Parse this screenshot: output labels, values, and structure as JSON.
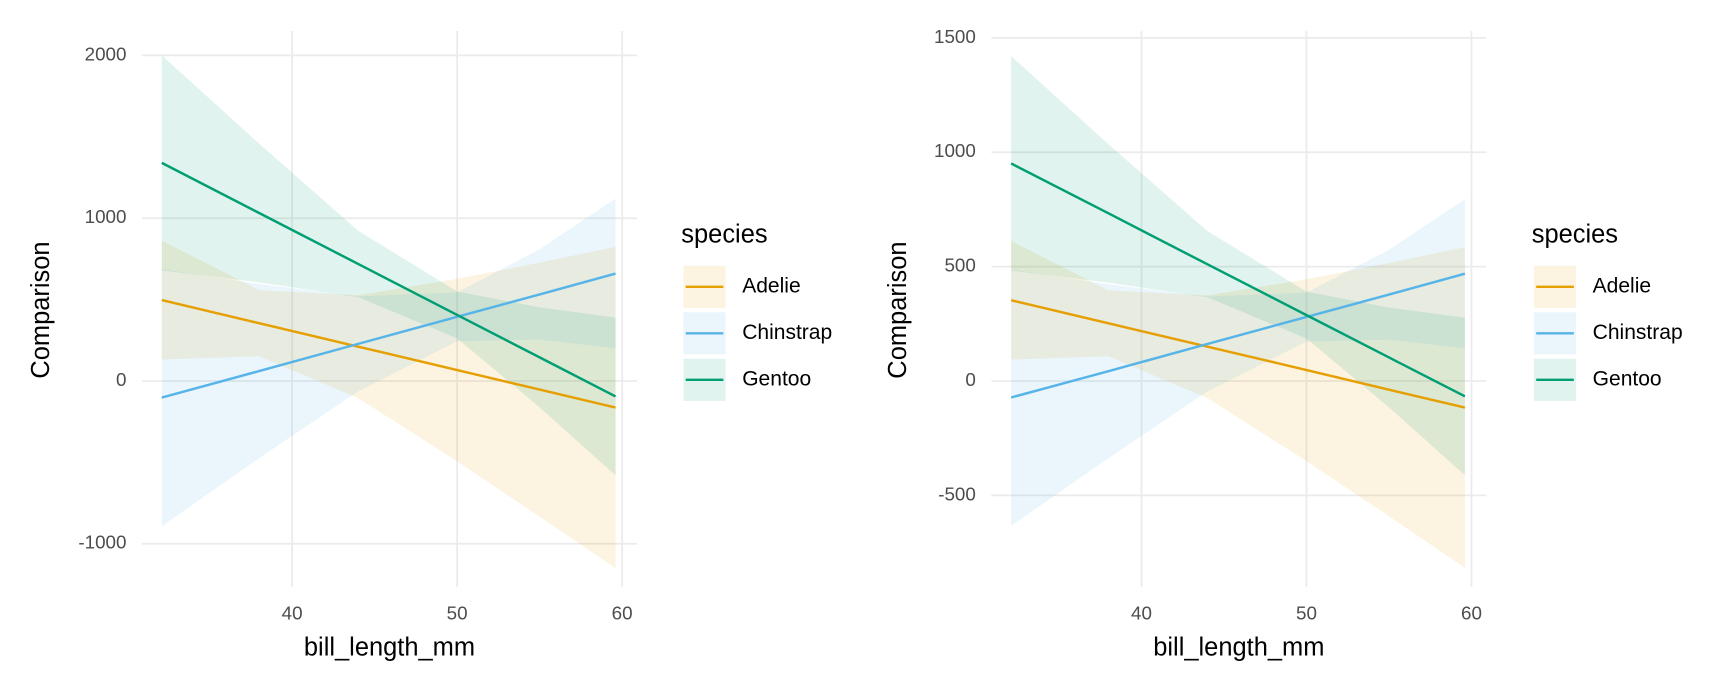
{
  "chart_data": [
    {
      "type": "line",
      "x_label": "bill_length_mm",
      "y_label": "Comparison",
      "legend_title": "species",
      "x": [
        32.1,
        38,
        44,
        50,
        55,
        59.6
      ],
      "xlim": [
        30.9,
        60.9
      ],
      "xticks": [
        40,
        50,
        60
      ],
      "ylim": [
        -1265,
        2150
      ],
      "yticks": [
        -1000,
        0,
        1000,
        2000
      ],
      "grid": true,
      "legend": "right",
      "series": [
        {
          "name": "Adelie",
          "color": "#E69F00",
          "values": [
            497,
            355,
            211,
            67,
            -53,
            -163
          ],
          "upper": [
            862,
            558,
            527,
            627,
            727,
            824
          ],
          "lower": [
            132,
            152,
            -105,
            -493,
            -833,
            -1150
          ]
        },
        {
          "name": "Chinstrap",
          "color": "#56B4E9",
          "values": [
            -102,
            61,
            228,
            394,
            532,
            660
          ],
          "upper": [
            688,
            596,
            520,
            544,
            809,
            1120
          ],
          "lower": [
            -892,
            -474,
            -64,
            244,
            255,
            200
          ]
        },
        {
          "name": "Gentoo",
          "color": "#009E73",
          "values": [
            1340,
            1032,
            719,
            406,
            145,
            -95
          ],
          "upper": [
            2000,
            1458,
            923,
            550,
            452,
            390
          ],
          "lower": [
            680,
            606,
            515,
            262,
            -162,
            -580
          ]
        }
      ]
    },
    {
      "type": "line",
      "x_label": "bill_length_mm",
      "y_label": "Comparison",
      "legend_title": "species",
      "x": [
        32.1,
        38,
        44,
        50,
        55,
        59.6
      ],
      "xlim": [
        30.9,
        60.9
      ],
      "xticks": [
        40,
        50,
        60
      ],
      "ylim": [
        -900,
        1530
      ],
      "yticks": [
        -500,
        0,
        500,
        1000,
        1500
      ],
      "grid": true,
      "legend": "right",
      "series": [
        {
          "name": "Adelie",
          "color": "#E69F00",
          "values": [
            353,
            252,
            150,
            48,
            -38,
            -116
          ],
          "upper": [
            612,
            396,
            374,
            445,
            516,
            585
          ],
          "lower": [
            94,
            108,
            -75,
            -350,
            -591,
            -817
          ]
        },
        {
          "name": "Chinstrap",
          "color": "#56B4E9",
          "values": [
            -72,
            43,
            162,
            280,
            378,
            469
          ],
          "upper": [
            488,
            423,
            369,
            386,
            574,
            795
          ],
          "lower": [
            -633,
            -337,
            -45,
            173,
            181,
            142
          ]
        },
        {
          "name": "Gentoo",
          "color": "#009E73",
          "values": [
            951,
            733,
            510,
            288,
            103,
            -67
          ],
          "upper": [
            1420,
            1035,
            655,
            391,
            321,
            277
          ],
          "lower": [
            483,
            430,
            366,
            186,
            -115,
            -412
          ]
        }
      ]
    }
  ]
}
